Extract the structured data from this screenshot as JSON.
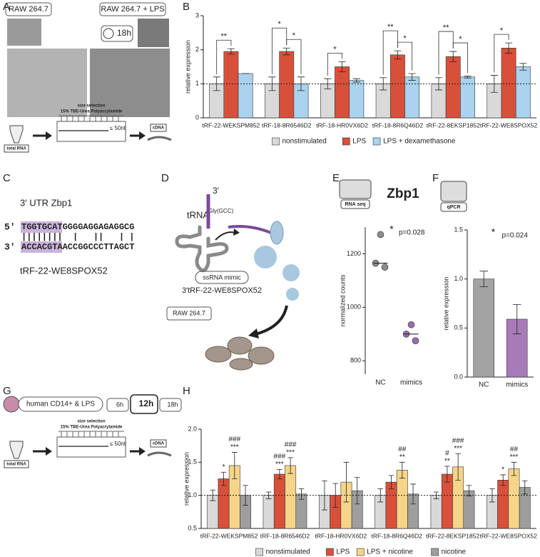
{
  "panel_labels": [
    "A",
    "B",
    "C",
    "D",
    "E",
    "F",
    "G",
    "H"
  ],
  "protocol": {
    "step1": "size selection",
    "step2": "15% TBE-Urea Polyacrylamide",
    "cutoff": "≤ 50nt",
    "input": "total RNA",
    "output": "cDNA"
  },
  "panel_a": {
    "left_label": "RAW 264.7",
    "right_label": "RAW 264.7 + LPS",
    "time": "18h"
  },
  "panel_c": {
    "title": "3′ UTR Zbp1",
    "top_end": "5′",
    "top_highlight": "TGGTGCAT",
    "top_rest": "GGGGAGGAGAGGCG",
    "pairing": "||||||||  |   ||   | |",
    "bottom_end": "3′",
    "bottom_highlight": "ACCACGTA",
    "bottom_rest": "ACCGGCCCTTAGCT",
    "caption": "tRF-22-WE8SPOX52"
  },
  "panel_d": {
    "end": "3′",
    "trna": "tRNA",
    "trna_sup": "Gly(GCC)",
    "mimic": "ssRNA mimic",
    "mimic_name": "3′tRF-22-WE8SPOX52",
    "cells": "RAW 264.7"
  },
  "panel_e": {
    "icon_label": "RNA seq"
  },
  "panel_f": {
    "icon_label": "qPCR"
  },
  "panel_g": {
    "treatment": "human CD14+ & LPS",
    "times": [
      "6h",
      "12h",
      "18h"
    ]
  },
  "chart_data": [
    {
      "type": "bar",
      "ylabel": "relative expression",
      "ylim": [
        0,
        3
      ],
      "yticks": [
        0,
        1,
        2,
        3
      ],
      "refline": 1,
      "categories": [
        "tRF-22-WEKSPM852",
        "tRF-18-8R6546D2",
        "tRF-18-HR0VX6D2",
        "tRF-18-8R6Q46D2",
        "tRF-22-8EKSP1852",
        "tRF-22-WE8SPOX52"
      ],
      "series": [
        {
          "name": "nonstimulated",
          "color": "#d9d9d9",
          "values": [
            1.0,
            1.0,
            1.0,
            1.0,
            1.0,
            1.0
          ],
          "errors": [
            0.2,
            0.2,
            0.15,
            0.18,
            0.18,
            0.25
          ]
        },
        {
          "name": "LPS",
          "color": "#d9503a",
          "values": [
            1.95,
            1.95,
            1.5,
            1.85,
            1.8,
            2.05
          ],
          "errors": [
            0.08,
            0.1,
            0.15,
            0.12,
            0.15,
            0.15
          ]
        },
        {
          "name": "LPS + dexamethasone",
          "color": "#a9d3ee",
          "values": [
            1.3,
            1.0,
            1.1,
            1.2,
            1.2,
            1.5
          ],
          "errors": [
            0.0,
            0.2,
            0.05,
            0.1,
            0.03,
            0.1
          ]
        }
      ],
      "brackets": [
        {
          "category": 0,
          "from": 0,
          "to": 1,
          "text": "**"
        },
        {
          "category": 1,
          "from": 1,
          "to": 2,
          "text": "*"
        },
        {
          "category": 1,
          "from": 0,
          "to": 1,
          "text": "*"
        },
        {
          "category": 2,
          "from": 0,
          "to": 1,
          "text": "*"
        },
        {
          "category": 3,
          "from": 1,
          "to": 2,
          "text": "*"
        },
        {
          "category": 3,
          "from": 0,
          "to": 1,
          "text": "**"
        },
        {
          "category": 4,
          "from": 1,
          "to": 2,
          "text": "*"
        },
        {
          "category": 4,
          "from": 0,
          "to": 1,
          "text": "**"
        },
        {
          "category": 5,
          "from": 0,
          "to": 1,
          "text": "*"
        }
      ]
    },
    {
      "type": "strip",
      "title": "Zbp1",
      "ylabel": "normalized counts",
      "ylim": [
        750,
        1300
      ],
      "yticks": [
        800,
        1000,
        1200
      ],
      "categories": [
        "NC",
        "mimics"
      ],
      "points": [
        [
          1272,
          1165,
          1150
        ],
        [
          935,
          900,
          875
        ]
      ],
      "medians": [
        1165,
        900
      ],
      "colors": [
        "#8c8c8c",
        "#9b6bb0"
      ],
      "star": "*",
      "pvalue": "p=0.028"
    },
    {
      "type": "bar",
      "ylabel": "relative expression",
      "ylim": [
        0,
        1.5
      ],
      "yticks": [
        {
          "value": 0,
          "label": "0.0"
        },
        0.5,
        {
          "value": 1,
          "label": "1.0"
        },
        1.5
      ],
      "categories": [
        "NC",
        "mimics"
      ],
      "values": [
        1.0,
        0.59
      ],
      "errors": [
        0.08,
        0.15
      ],
      "colors": [
        "#a3a3a3",
        "#a77bb8"
      ],
      "star": "*",
      "pvalue": "p=0.024"
    },
    {
      "type": "bar",
      "ylabel": "relative expression",
      "ylim": [
        0.5,
        2.0
      ],
      "yticks": [
        0.5,
        {
          "value": 1,
          "label": "1.0"
        },
        1.5,
        {
          "value": 2,
          "label": "2.0"
        }
      ],
      "refline": 1,
      "categories": [
        "tRF-22-WEKSPM852",
        "tRF-18-8R6546D2",
        "tRF-18-HR0VX6D2",
        "tRF-18-8R6Q46D2",
        "tRF-22-8EKSP1852",
        "tRF-22-WE8SPOX52"
      ],
      "series": [
        {
          "name": "nonstimulated",
          "color": "#d9d9d9",
          "values": [
            1.0,
            1.0,
            1.0,
            1.0,
            1.0,
            1.0
          ],
          "errors": [
            0.08,
            0.05,
            0.22,
            0.1,
            0.05,
            0.1
          ]
        },
        {
          "name": "LPS",
          "color": "#d9503a",
          "values": [
            1.25,
            1.32,
            1.0,
            1.2,
            1.32,
            1.23
          ],
          "errors": [
            0.1,
            0.07,
            0.18,
            0.1,
            0.12,
            0.08
          ]
        },
        {
          "name": "LPS + nicotine",
          "color": "#f6d58a",
          "values": [
            1.45,
            1.45,
            1.2,
            1.38,
            1.43,
            1.4
          ],
          "errors": [
            0.2,
            0.12,
            0.3,
            0.12,
            0.2,
            0.1
          ]
        },
        {
          "name": "nicotine",
          "color": "#9e9e9e",
          "values": [
            1.0,
            1.02,
            1.07,
            1.02,
            1.07,
            1.12
          ],
          "errors": [
            0.15,
            0.08,
            0.2,
            0.15,
            0.08,
            0.1
          ]
        }
      ],
      "marks": [
        {
          "category": 0,
          "series": 1,
          "text": "*"
        },
        {
          "category": 0,
          "series": 2,
          "text": "***"
        },
        {
          "category": 0,
          "series": 2,
          "text": "###"
        },
        {
          "category": 1,
          "series": 1,
          "text": "***"
        },
        {
          "category": 1,
          "series": 1,
          "text": "###"
        },
        {
          "category": 1,
          "series": 2,
          "text": "***"
        },
        {
          "category": 1,
          "series": 2,
          "text": "###"
        },
        {
          "category": 3,
          "series": 2,
          "text": "**"
        },
        {
          "category": 3,
          "series": 2,
          "text": "##"
        },
        {
          "category": 4,
          "series": 1,
          "text": "**"
        },
        {
          "category": 4,
          "series": 1,
          "text": "#"
        },
        {
          "category": 4,
          "series": 2,
          "text": "***"
        },
        {
          "category": 4,
          "series": 2,
          "text": "###"
        },
        {
          "category": 5,
          "series": 1,
          "text": "*"
        },
        {
          "category": 5,
          "series": 2,
          "text": "***"
        },
        {
          "category": 5,
          "series": 2,
          "text": "##"
        }
      ]
    }
  ]
}
